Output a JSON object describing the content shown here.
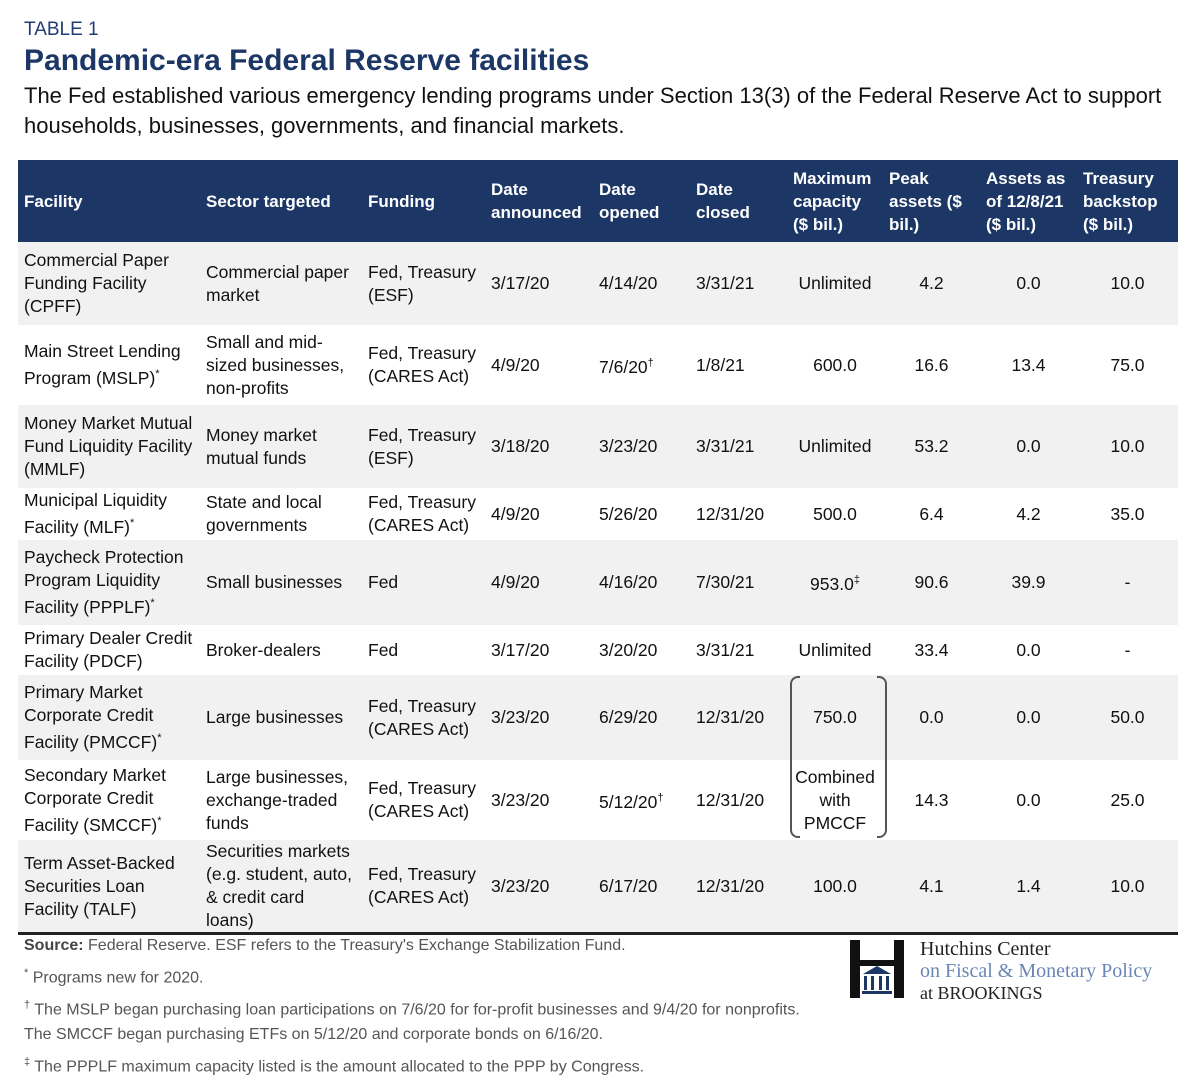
{
  "header": {
    "label": "TABLE 1",
    "title": "Pandemic-era Federal Reserve facilities",
    "subtitle": "The Fed established various emergency lending programs under Section 13(3) of the Federal Reserve Act to support households, businesses, governments, and financial markets."
  },
  "table": {
    "columns": [
      "Facility",
      "Sector targeted",
      "Funding",
      "Date announced",
      "Date opened",
      "Date closed",
      "Maximum capacity ($ bil.)",
      "Peak assets ($ bil.)",
      "Assets as of 12/8/21 ($ bil.)",
      "Treasury backstop ($ bil.)"
    ],
    "rows": [
      [
        "Commercial Paper Funding Facility (CPFF)",
        "Commercial paper market",
        "Fed, Treasury (ESF)",
        "3/17/20",
        "4/14/20",
        "3/31/21",
        "Unlimited",
        "4.2",
        "0.0",
        "10.0"
      ],
      [
        {
          "text": "Main Street Lending Program (MSLP)",
          "sup": "*"
        },
        "Small and mid-sized businesses, non-profits",
        "Fed, Treasury (CARES Act)",
        "4/9/20",
        {
          "text": "7/6/20",
          "sup": "†"
        },
        "1/8/21",
        "600.0",
        "16.6",
        "13.4",
        "75.0"
      ],
      [
        "Money Market Mutual Fund Liquidity Facility (MMLF)",
        "Money market mutual funds",
        "Fed, Treasury (ESF)",
        "3/18/20",
        "3/23/20",
        "3/31/21",
        "Unlimited",
        "53.2",
        "0.0",
        "10.0"
      ],
      [
        {
          "text": "Municipal Liquidity Facility (MLF)",
          "sup": "*"
        },
        "State and local governments",
        "Fed, Treasury (CARES Act)",
        "4/9/20",
        "5/26/20",
        "12/31/20",
        "500.0",
        "6.4",
        "4.2",
        "35.0"
      ],
      [
        {
          "text": "Paycheck Protection Program Liquidity Facility (PPPLF)",
          "sup": "*"
        },
        "Small businesses",
        "Fed",
        "4/9/20",
        "4/16/20",
        "7/30/21",
        {
          "text": "953.0",
          "sup": "‡"
        },
        "90.6",
        "39.9",
        "-"
      ],
      [
        "Primary Dealer Credit Facility (PDCF)",
        "Broker-dealers",
        "Fed",
        "3/17/20",
        "3/20/20",
        "3/31/21",
        "Unlimited",
        "33.4",
        "0.0",
        "-"
      ],
      [
        {
          "text": "Primary Market Corporate Credit Facility (PMCCF)",
          "sup": "*"
        },
        "Large businesses",
        "Fed, Treasury (CARES Act)",
        "3/23/20",
        "6/29/20",
        "12/31/20",
        "750.0",
        "0.0",
        "0.0",
        "50.0"
      ],
      [
        {
          "text": "Secondary Market Corporate Credit Facility (SMCCF)",
          "sup": "*"
        },
        "Large businesses, exchange-traded funds",
        "Fed, Treasury (CARES Act)",
        "3/23/20",
        {
          "text": "5/12/20",
          "sup": "†"
        },
        "12/31/20",
        "Combined with PMCCF",
        "14.3",
        "0.0",
        "25.0"
      ],
      [
        "Term Asset-Backed Securities Loan Facility (TALF)",
        "Securities markets (e.g. student, auto, & credit card loans)",
        "Fed, Treasury (CARES Act)",
        "3/23/20",
        "6/17/20",
        "12/31/20",
        "100.0",
        "4.1",
        "1.4",
        "10.0"
      ]
    ]
  },
  "notes": {
    "source": {
      "label": "Source:",
      "text": "Federal Reserve. ESF refers to the Treasury's Exchange Stabilization Fund."
    },
    "items": [
      {
        "marker": "*",
        "text": "Programs new for 2020."
      },
      {
        "marker": "†",
        "text": "The MSLP began purchasing loan participations on 7/6/20 for for-profit businesses and 9/4/20 for nonprofits. The SMCCF began purchasing ETFs on 5/12/20 and corporate bonds on 6/16/20."
      },
      {
        "marker": "‡",
        "text": "The PPPLF maximum capacity listed is the amount allocated to the PPP by Congress."
      }
    ]
  },
  "logo": {
    "line1": "Hutchins Center",
    "line2": "on Fiscal & Monetary Policy",
    "line3": "at BROOKINGS"
  }
}
